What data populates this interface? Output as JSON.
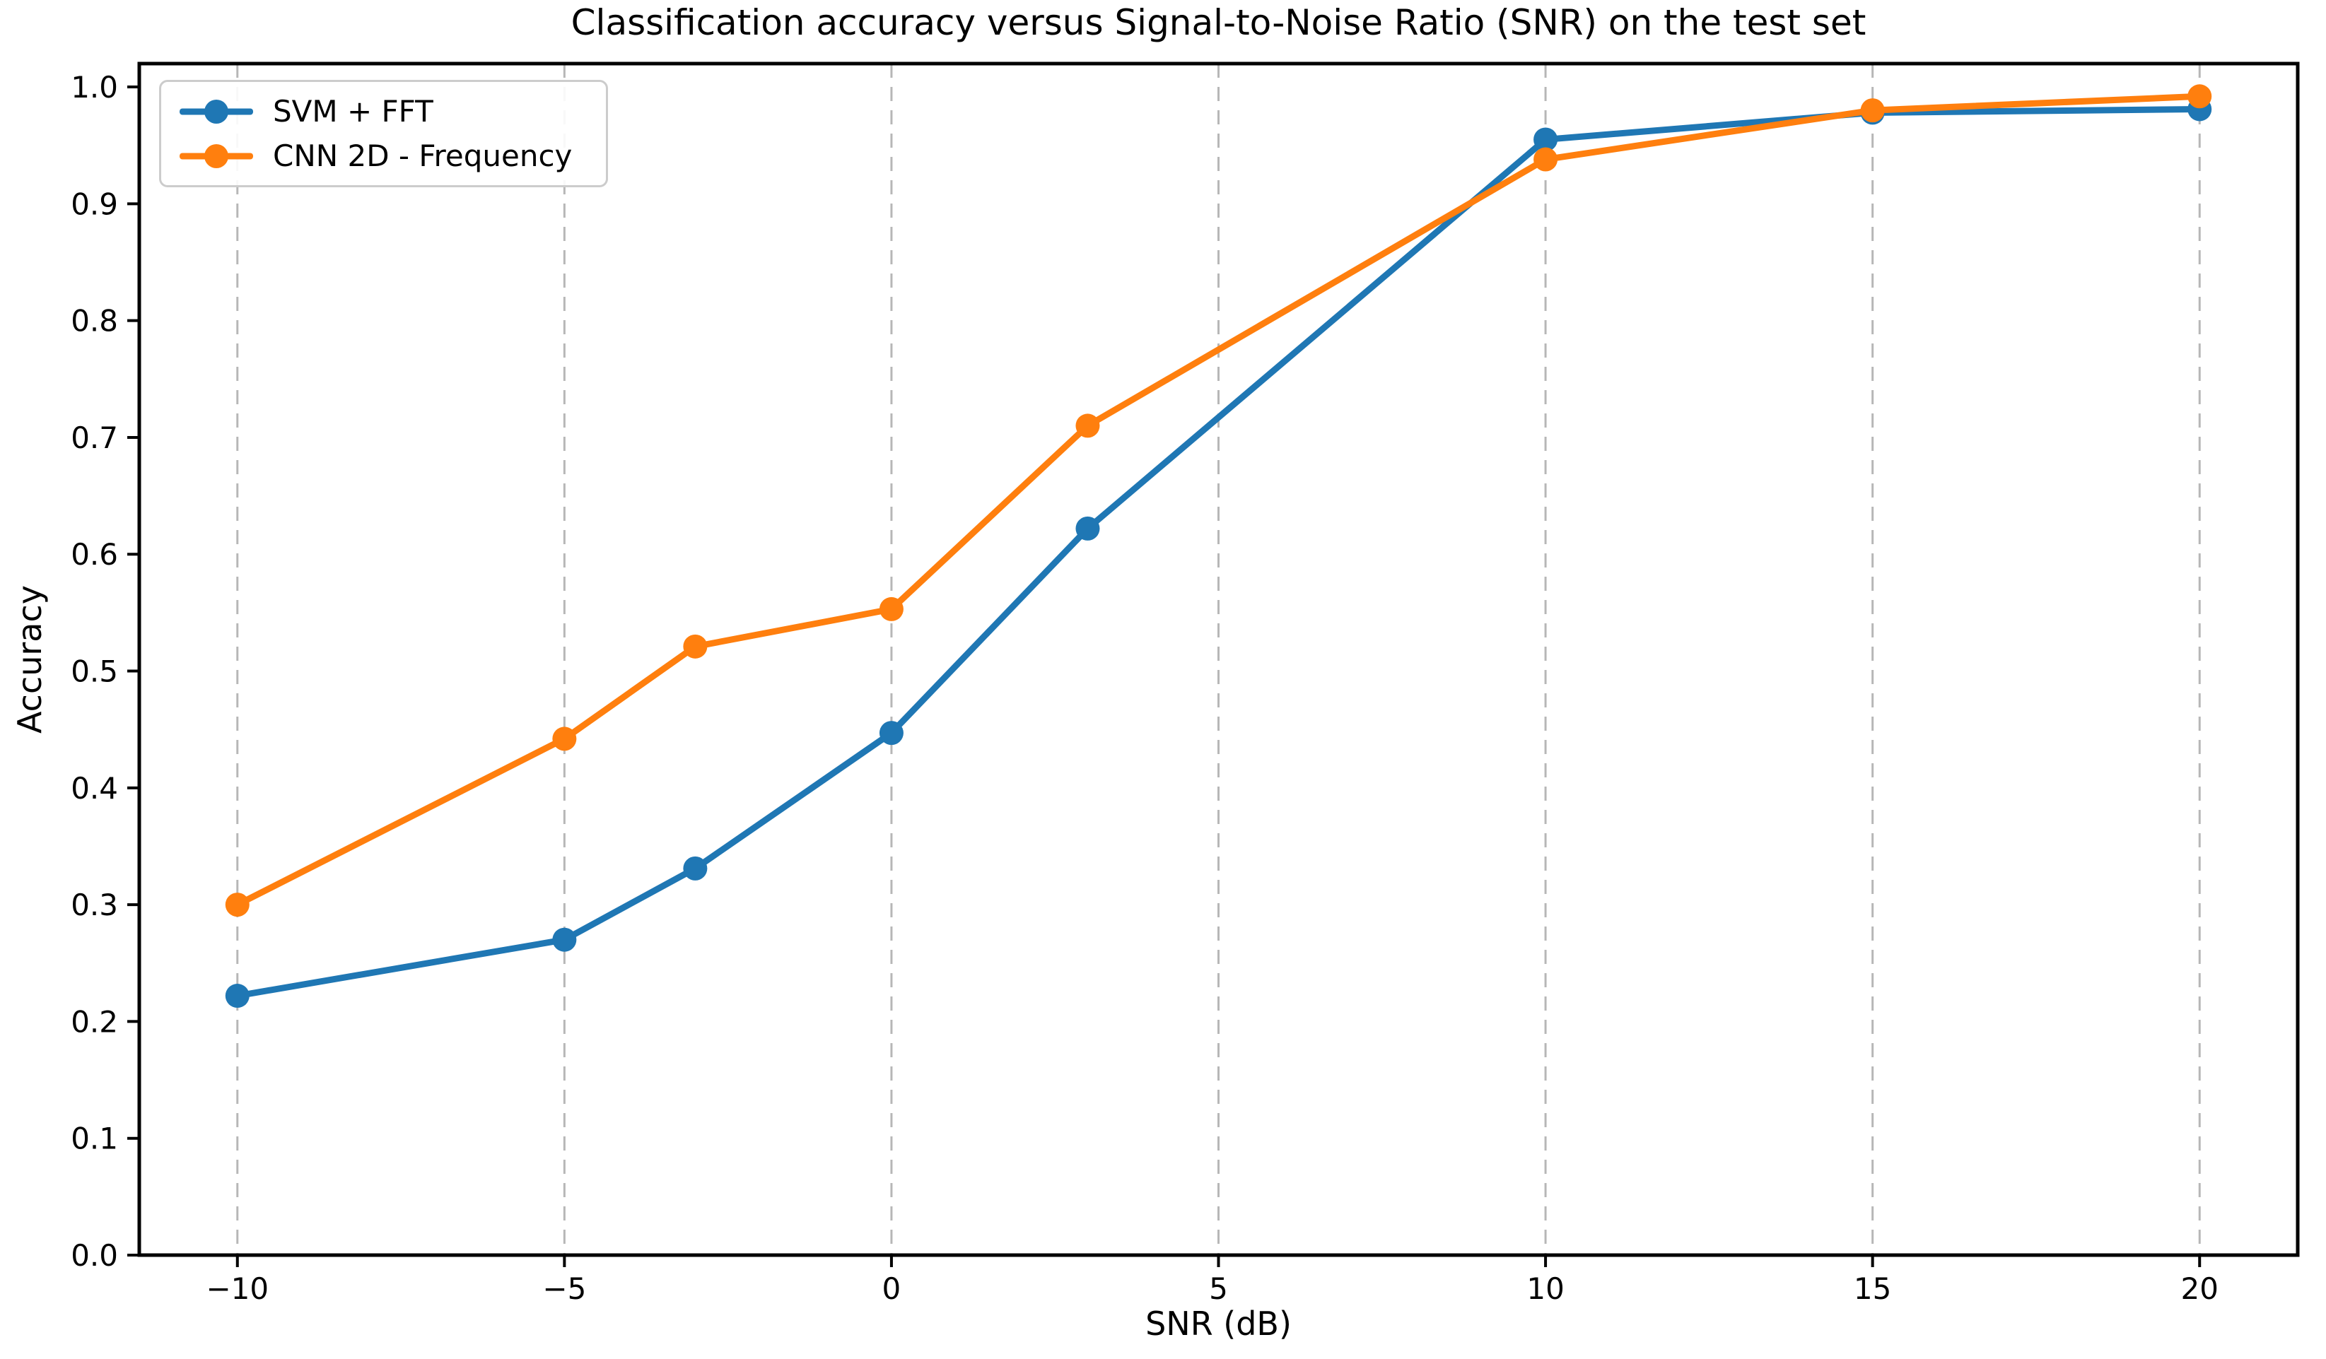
{
  "figure": {
    "background": "#ffffff",
    "frame_color": "#000000",
    "grid_color": "#b0b0b0",
    "tick_color": "#000000",
    "legend_border_color": "#cccccc"
  },
  "chart_data": {
    "type": "line",
    "title": "Classification accuracy versus Signal-to-Noise Ratio (SNR) on the test set",
    "xlabel": "SNR (dB)",
    "ylabel": "Accuracy",
    "xlim": [
      -11.5,
      21.5
    ],
    "ylim": [
      0,
      1.02
    ],
    "x_ticks": [
      -10,
      -5,
      0,
      5,
      10,
      15,
      20
    ],
    "x_tick_labels": [
      "−10",
      "−5",
      "0",
      "5",
      "10",
      "15",
      "20"
    ],
    "y_ticks": [
      0.0,
      0.1,
      0.2,
      0.3,
      0.4,
      0.5,
      0.6,
      0.7,
      0.8,
      0.9,
      1.0
    ],
    "y_tick_labels": [
      "0.0",
      "0.1",
      "0.2",
      "0.3",
      "0.4",
      "0.5",
      "0.6",
      "0.7",
      "0.8",
      "0.9",
      "1.0"
    ],
    "grid": {
      "axis": "x",
      "linestyle": "dashed",
      "color": "#b0b0b0"
    },
    "legend_position": "upper left",
    "x": [
      -10,
      -5,
      -3,
      0,
      3,
      10,
      15,
      20
    ],
    "series": [
      {
        "name": "SVM + FFT",
        "color": "#1f77b4",
        "values": [
          0.222,
          0.27,
          0.331,
          0.447,
          0.622,
          0.955,
          0.978,
          0.981
        ]
      },
      {
        "name": "CNN 2D - Frequency",
        "color": "#ff7f0e",
        "values": [
          0.3,
          0.442,
          0.521,
          0.553,
          0.71,
          0.938,
          0.98,
          0.992
        ]
      }
    ]
  }
}
